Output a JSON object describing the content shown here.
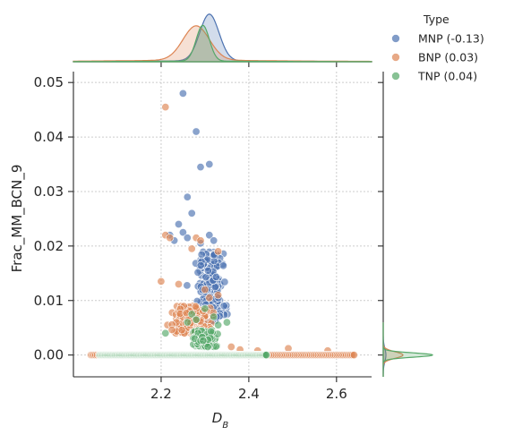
{
  "chart_data": {
    "type": "scatter",
    "xlabel": "D",
    "xlabel_sub": "B",
    "ylabel": "Frac_MM_BCN_9",
    "xlim": [
      2.0,
      2.68
    ],
    "ylim": [
      -0.004,
      0.052
    ],
    "xticks": [
      "2.2",
      "2.4",
      "2.6"
    ],
    "xtick_values": [
      2.2,
      2.4,
      2.6
    ],
    "yticks": [
      "0.00",
      "0.01",
      "0.02",
      "0.03",
      "0.04",
      "0.05"
    ],
    "ytick_values": [
      0.0,
      0.01,
      0.02,
      0.03,
      0.04,
      0.05
    ],
    "grid": true,
    "legend": {
      "title": "Type",
      "placement": "outside-top-right"
    },
    "marginals": {
      "top": "kde",
      "right": "kde"
    },
    "series": [
      {
        "name": "MNP (-0.13)",
        "color": "#4c72b0",
        "cluster": {
          "x_center": 2.31,
          "x_spread": 0.03,
          "y_min": 0.006,
          "y_max": 0.019,
          "count": 220
        },
        "points": [
          [
            2.25,
            0.048
          ],
          [
            2.28,
            0.041
          ],
          [
            2.31,
            0.035
          ],
          [
            2.29,
            0.0345
          ],
          [
            2.26,
            0.029
          ],
          [
            2.27,
            0.026
          ],
          [
            2.24,
            0.024
          ],
          [
            2.25,
            0.0225
          ],
          [
            2.31,
            0.022
          ],
          [
            2.32,
            0.021
          ],
          [
            2.29,
            0.0205
          ],
          [
            2.26,
            0.0215
          ],
          [
            2.22,
            0.022
          ],
          [
            2.23,
            0.021
          ]
        ],
        "baseline": {
          "x_min": 2.06,
          "x_max": 2.5,
          "y": 0.0,
          "count": 120
        }
      },
      {
        "name": "BNP (0.03)",
        "color": "#dd8452",
        "cluster": {
          "x_center": 2.27,
          "x_spread": 0.04,
          "y_min": 0.004,
          "y_max": 0.009,
          "count": 260
        },
        "points": [
          [
            2.21,
            0.0455
          ],
          [
            2.21,
            0.022
          ],
          [
            2.22,
            0.0215
          ],
          [
            2.28,
            0.0215
          ],
          [
            2.29,
            0.021
          ],
          [
            2.27,
            0.0195
          ],
          [
            2.33,
            0.019
          ],
          [
            2.2,
            0.0135
          ],
          [
            2.24,
            0.013
          ],
          [
            2.3,
            0.012
          ],
          [
            2.33,
            0.011
          ],
          [
            2.31,
            0.0105
          ],
          [
            2.36,
            0.0015
          ],
          [
            2.38,
            0.001
          ],
          [
            2.42,
            0.0008
          ],
          [
            2.58,
            0.0008
          ],
          [
            2.49,
            0.0012
          ]
        ],
        "baseline": {
          "x_min": 2.04,
          "x_max": 2.64,
          "y": 0.0,
          "count": 170
        }
      },
      {
        "name": "TNP (0.04)",
        "color": "#55a868",
        "cluster": {
          "x_center": 2.3,
          "x_spread": 0.025,
          "y_min": 0.0015,
          "y_max": 0.0045,
          "count": 180
        },
        "points": [
          [
            2.27,
            0.0075
          ],
          [
            2.3,
            0.0085
          ],
          [
            2.32,
            0.007
          ],
          [
            2.26,
            0.006
          ],
          [
            2.35,
            0.006
          ],
          [
            2.21,
            0.004
          ],
          [
            2.33,
            0.0055
          ],
          [
            2.28,
            0.0065
          ]
        ],
        "baseline": {
          "x_min": 2.06,
          "x_max": 2.44,
          "y": 0.0,
          "count": 200
        }
      }
    ]
  }
}
